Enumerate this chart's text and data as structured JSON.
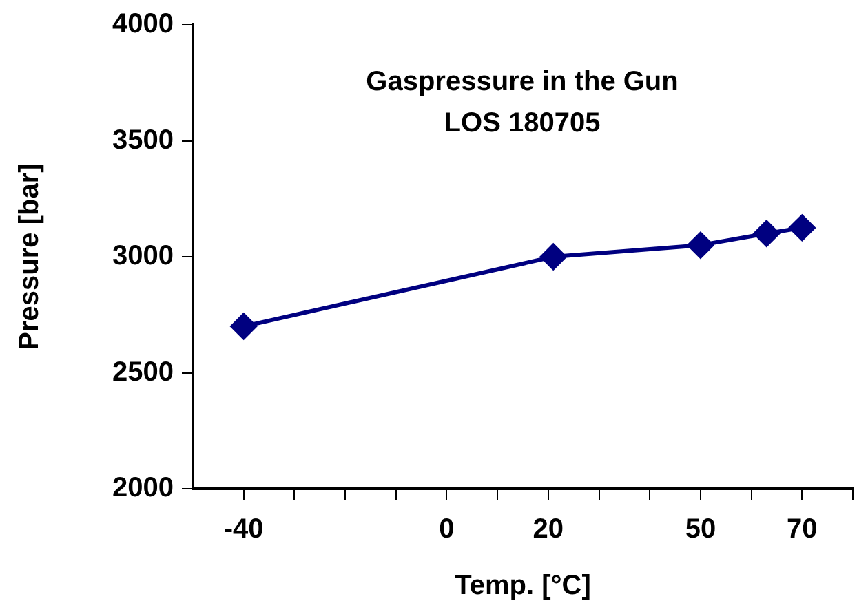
{
  "chart_data": {
    "type": "line",
    "title": "Gaspressure in the Gun\nLOS 180705",
    "xlabel": "Temp. [°C]",
    "ylabel": "Pressure [bar]",
    "x": [
      -40,
      21,
      50,
      63,
      70
    ],
    "series": [
      {
        "color": "#000080",
        "values": [
          2700,
          3000,
          3050,
          3100,
          3125
        ]
      }
    ],
    "xlim": [
      -50,
      80
    ],
    "xticks": [
      -40,
      {
        "value": -30,
        "label": null
      },
      {
        "value": -20,
        "label": null
      },
      {
        "value": -10,
        "label": null
      },
      0,
      {
        "value": 10,
        "label": null
      },
      20,
      {
        "value": 30,
        "label": null
      },
      {
        "value": 40,
        "label": null
      },
      50,
      {
        "value": 60,
        "label": null
      },
      70,
      {
        "value": 80,
        "label": null
      }
    ],
    "ylim": [
      2000,
      4000
    ],
    "yticks": [
      2000,
      2500,
      3000,
      3500,
      4000
    ],
    "grid": false,
    "legend": false,
    "marker": "diamond",
    "line_style": "solid"
  }
}
